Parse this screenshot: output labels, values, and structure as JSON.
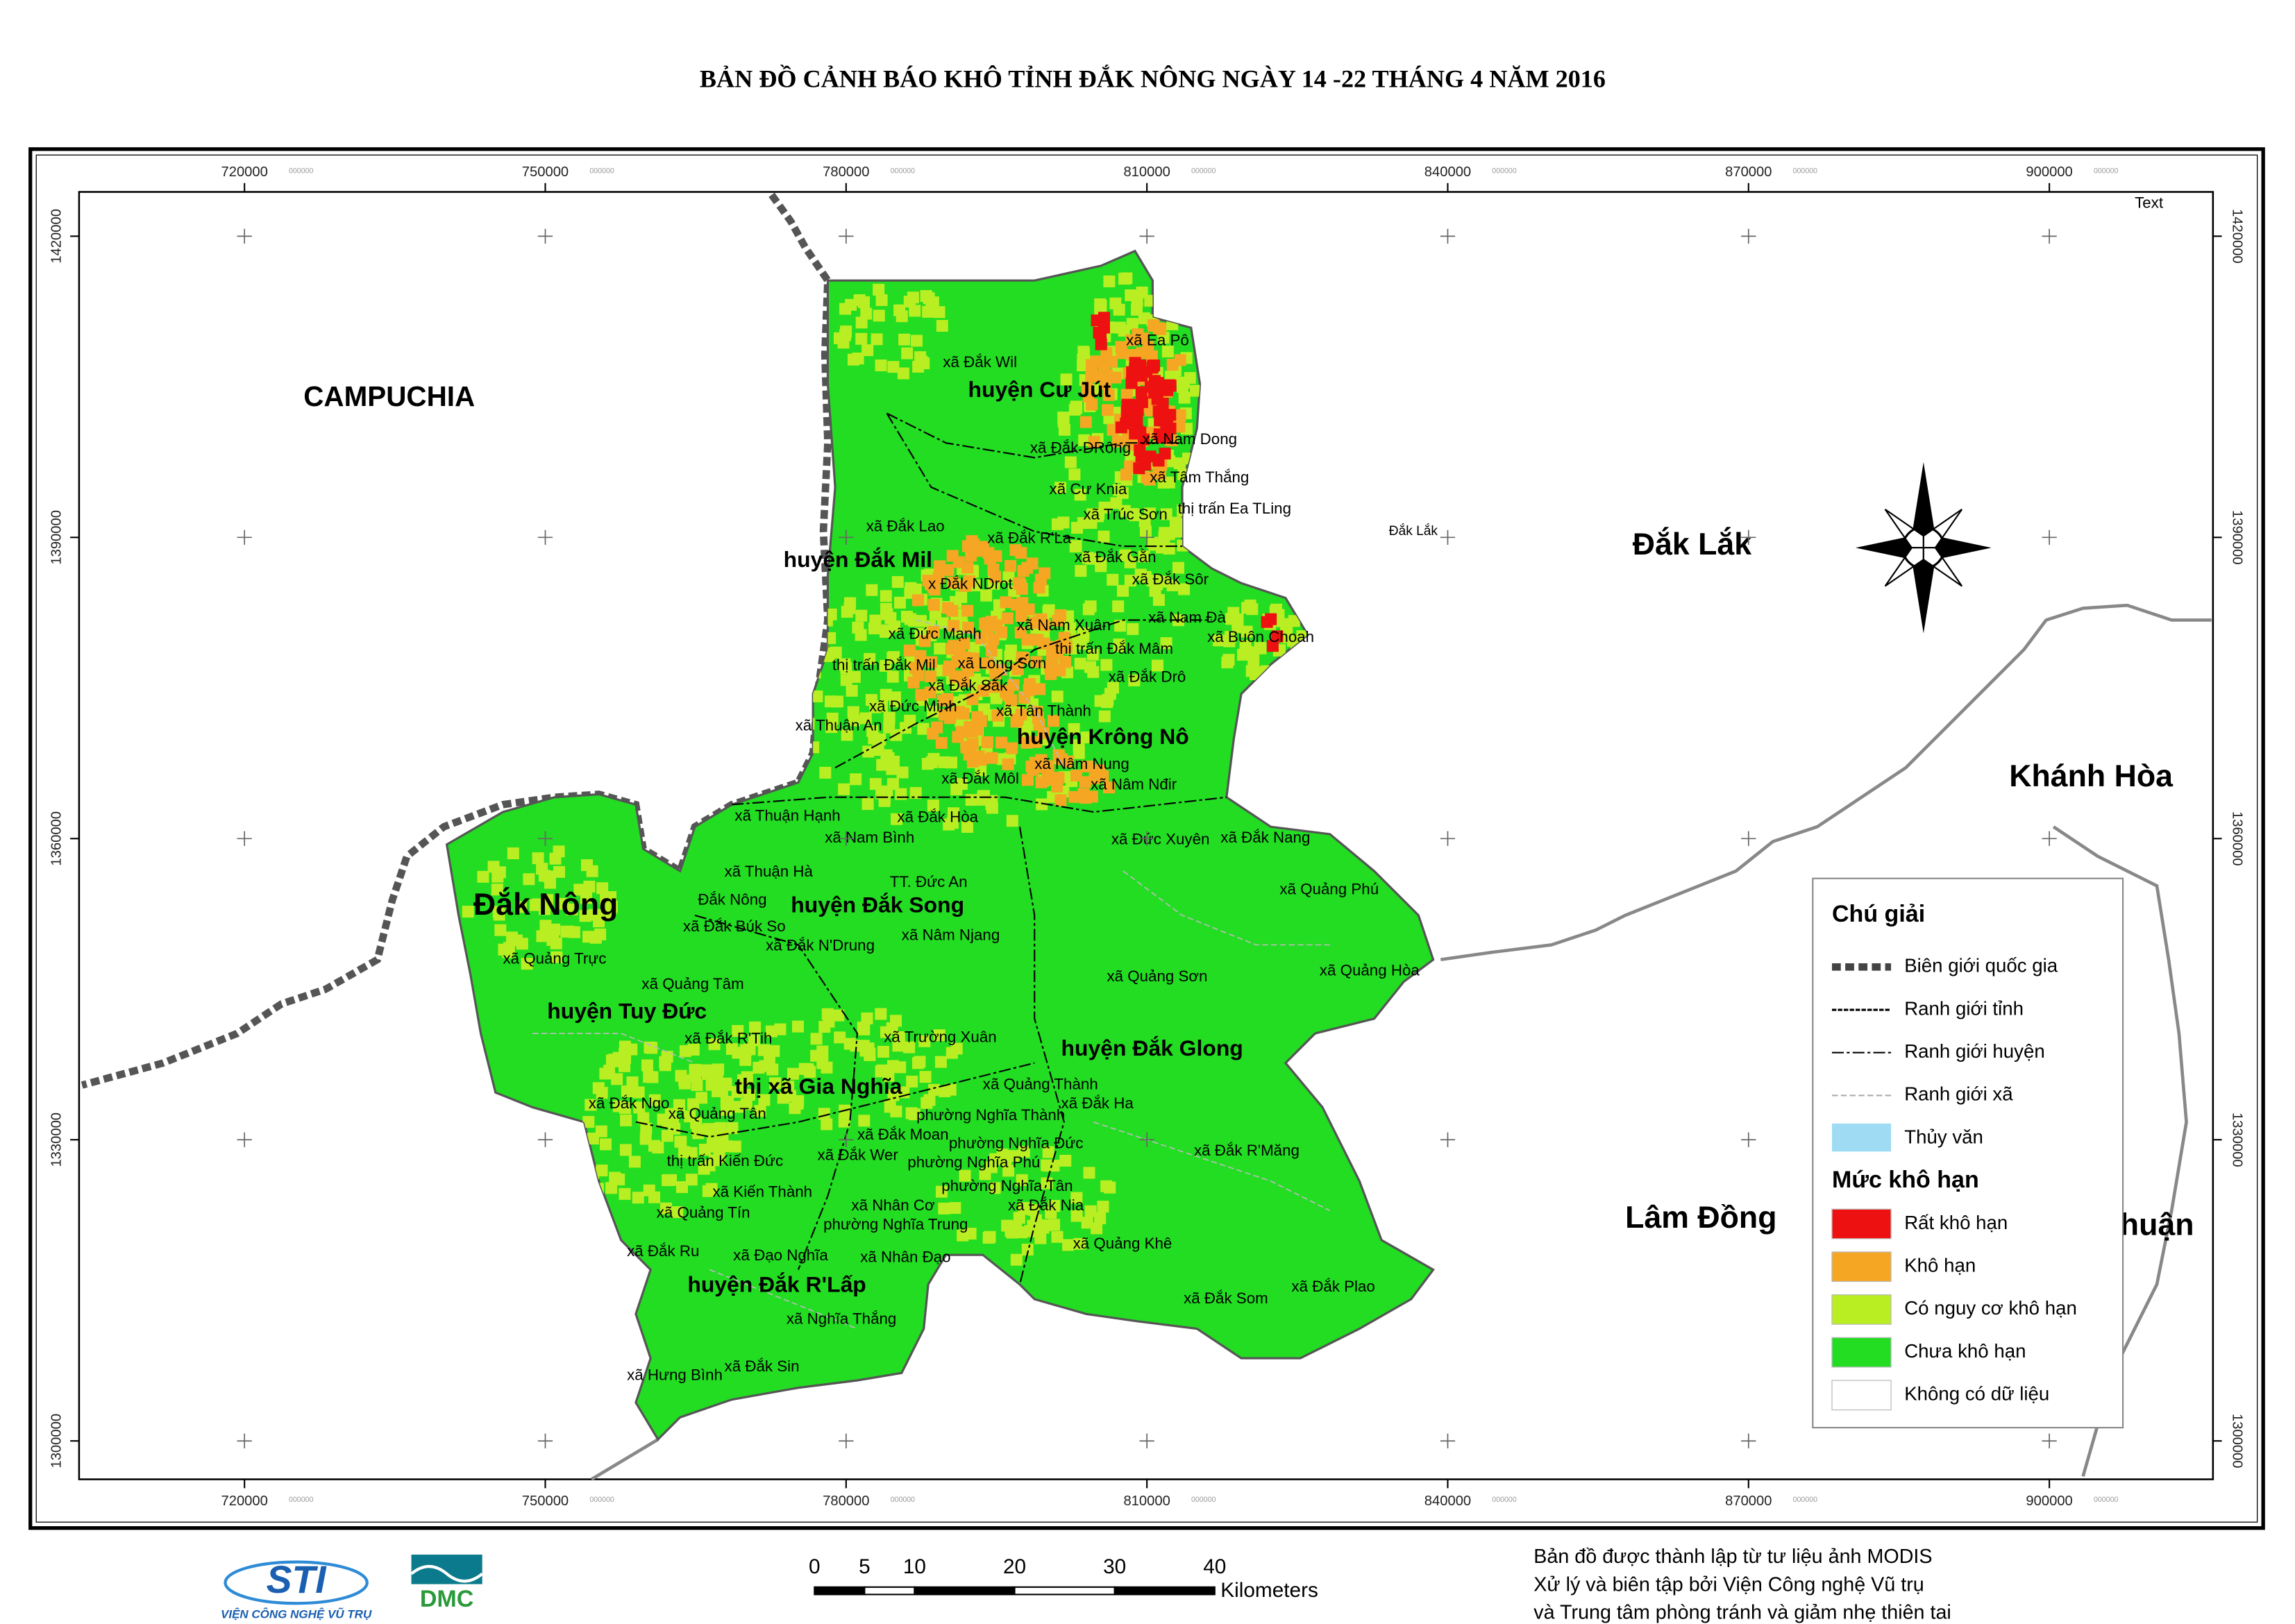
{
  "title": "BẢN ĐỒ CẢNH BÁO KHÔ TỈNH ĐẮK NÔNG NGÀY 14 -22 THÁNG 4 NĂM 2016",
  "map": {
    "x_ticks": [
      720000,
      750000,
      780000,
      810000,
      840000,
      870000,
      900000
    ],
    "y_ticks": [
      1300000,
      1330000,
      1360000,
      1390000,
      1420000
    ],
    "tick_suffix": "000000",
    "corner_text": "Text",
    "regions": [
      "CAMPUCHIA",
      "Đắk Lắk",
      "Khánh Hòa",
      "Lâm Đồng",
      "huận",
      "Đắk Nông",
      "Đắk Lắk"
    ],
    "districts": [
      "huyện Cư Jút",
      "huyện Đắk Mil",
      "huyện Krông Nô",
      "huyện Đắk Song",
      "huyện Tuy Đức",
      "thị xã Gia Nghĩa",
      "huyện Đắk Glong",
      "huyện Đắk R'Lấp"
    ],
    "communes": [
      "xã Đắk Wil",
      "xã Ea Pô",
      "xã Đắk DRông",
      "xã Nam Dong",
      "xã Tâm Thắng",
      "xã Cư Knia",
      "xã Trúc Sơn",
      "thị trấn Ea TLing",
      "xã Đắk Lao",
      "xã Đắk R'La",
      "xã Đắk Gằn",
      "x Đắk NDrot",
      "xã Đắk Sôr",
      "xã Nam Đà",
      "xã Nam Xuân",
      "xã Buôn Choah",
      "xã Đức Mạnh",
      "thị trấn Đắk Mâm",
      "thị trấn Đắk Mil",
      "xã Long Sơn",
      "xã Đắk Drô",
      "xã Đắk Sắk",
      "xã Đức Minh",
      "xã Tân Thành",
      "xã Thuận An",
      "xã Nâm Nung",
      "xã Đắk Môl",
      "xã Nâm Nđir",
      "xã Thuận Hạnh",
      "xã Đắk Hòa",
      "xã Nam Bình",
      "xã Đức Xuyên",
      "xã Đắk Nang",
      "xã Thuận Hà",
      "TT. Đức An",
      "xã Quảng Phú",
      "Đắk Nông",
      "xã Đắk Búk So",
      "xã Đắk N'Drung",
      "xã Nâm Njang",
      "xã Quảng Trực",
      "xã Quảng Tâm",
      "xã Quảng Sơn",
      "xã Quảng Hòa",
      "xã Đắk R'Tih",
      "xã Trường Xuân",
      "xã Quảng Thành",
      "xã Đắk Ngo",
      "xã Quảng Tân",
      "phường Nghĩa Thành",
      "xã Đắk Ha",
      "xã Đắk Moan",
      "phường Nghĩa Đức",
      "xã Đắk R'Măng",
      "thị trấn Kiến Đức",
      "xã Đắk Wer",
      "phường Nghĩa Phú",
      "xã Kiến Thành",
      "phường Nghĩa Tân",
      "xã Quảng Tín",
      "xã Nhân Cơ",
      "phường Nghĩa Trung",
      "xã Đắk Nia",
      "xã Quảng Khê",
      "xã Đắk Ru",
      "xã Đạo Nghĩa",
      "xã Nhân Đạo",
      "xã Nghĩa Thắng",
      "xã Đắk Som",
      "xã Đắk Plao",
      "xã Hưng Bình",
      "xã Đắk Sin"
    ]
  },
  "legend": {
    "title": "Chú giải",
    "boundaries": [
      "Biên giới quốc gia",
      "Ranh giới tỉnh",
      "Ranh giới huyện",
      "Ranh giới xã",
      "Thủy văn"
    ],
    "drought_title": "Mức khô hạn",
    "drought_levels": [
      {
        "label": "Rất khô hạn",
        "color": "#ee1111"
      },
      {
        "label": "Khô hạn",
        "color": "#f5a623"
      },
      {
        "label": "Có nguy cơ khô hạn",
        "color": "#b8ee22"
      },
      {
        "label": "Chưa khô hạn",
        "color": "#22dd22"
      },
      {
        "label": "Không có dữ liệu",
        "color": "#ffffff"
      }
    ]
  },
  "scale_bar": {
    "ticks": [
      0,
      5,
      10,
      20,
      30,
      40
    ],
    "unit": "Kilometers"
  },
  "credits": {
    "lines": [
      "Bản đồ được thành lập từ tư liệu ảnh MODIS",
      "Xử lý và biên tập bởi Viện Công nghệ Vũ trụ",
      "và Trung tâm phòng tránh và giảm nhẹ thiên tai"
    ],
    "logo_sti": "STI",
    "logo_sti_caption": "VIỆN CÔNG NGHỆ VŨ TRỤ",
    "logo_dmc": "DMC"
  }
}
